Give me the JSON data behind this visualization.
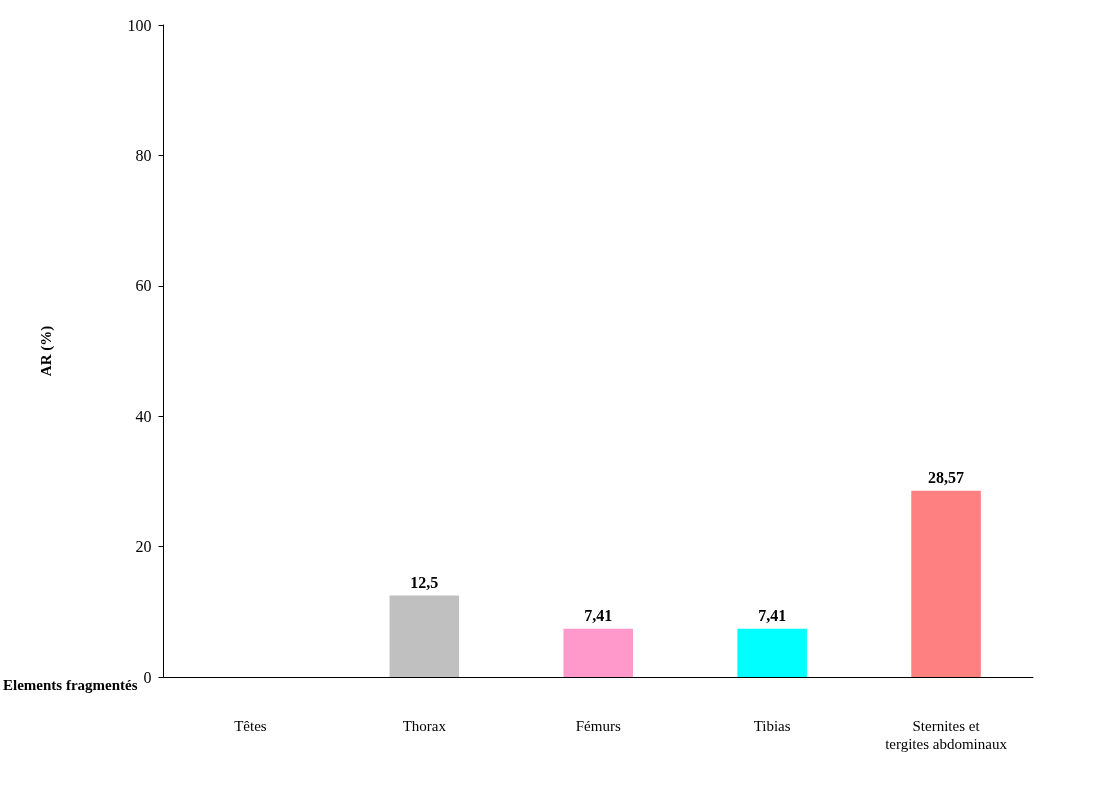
{
  "chart_data": {
    "type": "bar",
    "xlabel": "Elements fragmentés",
    "ylabel": "AR (%)",
    "categories": [
      "Têtes",
      "Thorax",
      "Fémurs",
      "Tibias",
      "Sternites et tergites abdominaux"
    ],
    "values": [
      0,
      12.5,
      7.41,
      7.41,
      28.57
    ],
    "colors": [
      "#99cc99",
      "#c0c0c0",
      "#ff99cc",
      "#00ffff",
      "#ff8080"
    ],
    "value_labels": [
      null,
      "12,5",
      "7,41",
      "7,41",
      "28,57"
    ],
    "ylim": [
      0,
      100
    ],
    "yticks": [
      0,
      20,
      40,
      60,
      80,
      100
    ],
    "grid": false
  }
}
